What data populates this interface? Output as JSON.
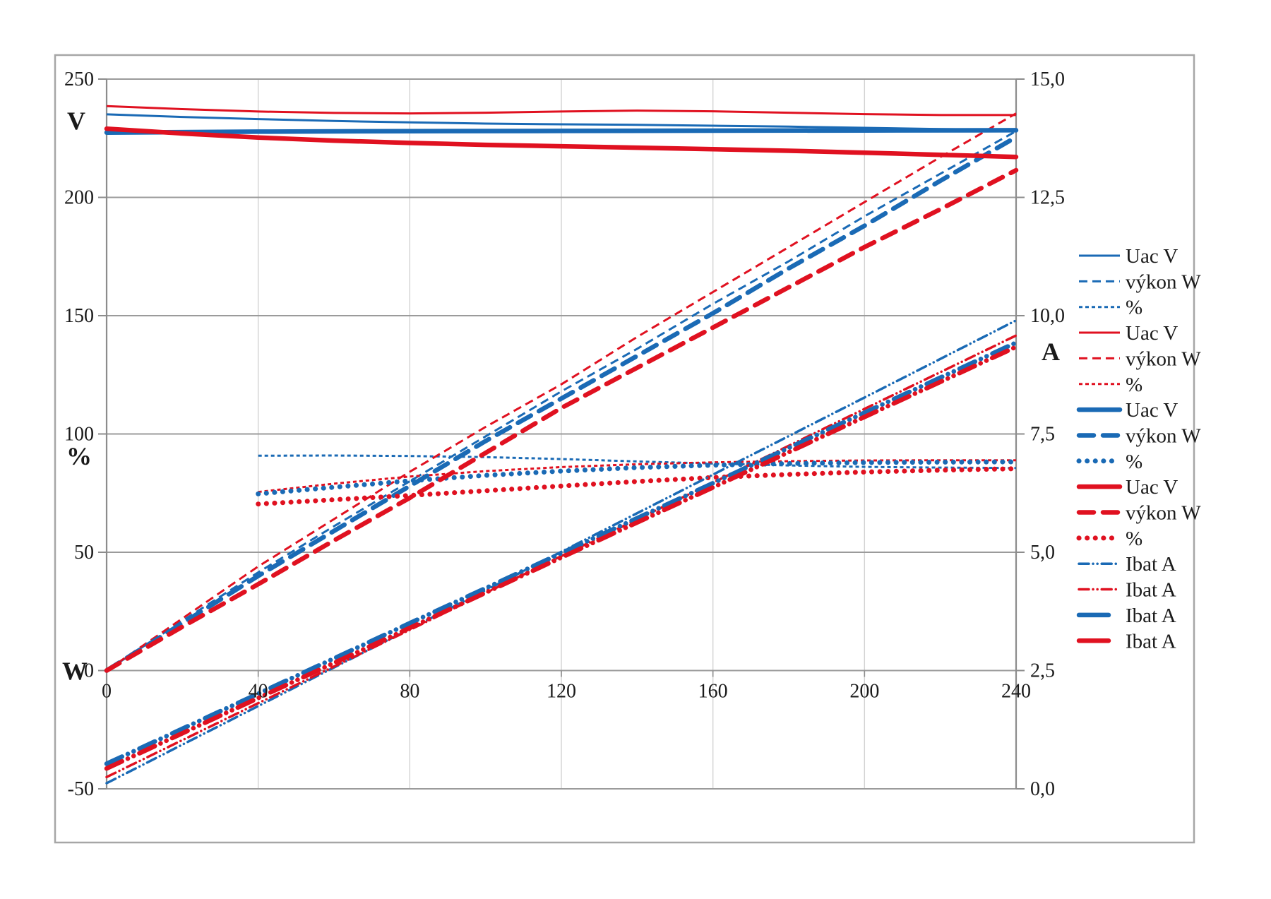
{
  "figure": {
    "background": "#ffffff",
    "border_color": "#a6a6a6",
    "axis_color": "#8c8c8c",
    "gridline_h_color": "#9b9b9b",
    "gridline_v_color": "#d2d2d2",
    "text_color": "#1a1a1a"
  },
  "axes": {
    "left": {
      "unit_top": "V",
      "unit_middle": "%",
      "unit_bottom": "W",
      "ticks": [
        "250",
        "200",
        "150",
        "100",
        "50",
        "0",
        "-50"
      ]
    },
    "right": {
      "unit": "A",
      "ticks": [
        "15,0",
        "12,5",
        "10,0",
        "7,5",
        "5,0",
        "2,5",
        "0,0"
      ]
    },
    "x": {
      "ticks": [
        "0",
        "40",
        "80",
        "120",
        "160",
        "200",
        "240"
      ]
    }
  },
  "chart_data": {
    "type": "line",
    "title": "",
    "x_axis": {
      "min": 0,
      "max": 240,
      "tick_labels": [
        "0",
        "40",
        "80",
        "120",
        "160",
        "200",
        "240"
      ],
      "gridlines": true
    },
    "y_axis_left": {
      "min": -50,
      "max": 250,
      "tick_step": 50,
      "tick_labels": [
        "250",
        "200",
        "150",
        "100",
        "50",
        "0",
        "-50"
      ],
      "unit_labels": {
        "top": "V",
        "middle": "%",
        "bottom": "W"
      }
    },
    "y_axis_right": {
      "min": 0.0,
      "max": 15.0,
      "tick_step": 2.5,
      "tick_labels": [
        "15,0",
        "12,5",
        "10,0",
        "7,5",
        "5,0",
        "2,5",
        "0,0"
      ],
      "unit_label": "A"
    },
    "legend_position": "right",
    "colors": {
      "blue": "#1a6ab5",
      "red": "#e01120"
    },
    "series": [
      {
        "name": "uac-v-blue-thin",
        "label": "Uac V",
        "color": "blue",
        "style": "thin-solid",
        "axis": "left",
        "unit": "V",
        "points": [
          [
            0,
            235.1
          ],
          [
            20,
            234.0
          ],
          [
            40,
            233.1
          ],
          [
            60,
            232.3
          ],
          [
            80,
            231.7
          ],
          [
            100,
            231.2
          ],
          [
            120,
            230.9
          ],
          [
            140,
            230.7
          ],
          [
            160,
            230.3
          ],
          [
            180,
            229.9
          ],
          [
            200,
            229.4
          ],
          [
            220,
            228.9
          ],
          [
            240,
            228.5
          ]
        ]
      },
      {
        "name": "vykon-w-blue-thin",
        "label": "výkon W",
        "color": "blue",
        "style": "thin-dash",
        "axis": "left",
        "unit": "W",
        "points": [
          [
            0,
            0
          ],
          [
            20,
            21
          ],
          [
            40,
            41.5
          ],
          [
            60,
            61
          ],
          [
            80,
            80
          ],
          [
            100,
            99
          ],
          [
            120,
            118
          ],
          [
            140,
            136
          ],
          [
            160,
            155
          ],
          [
            180,
            173
          ],
          [
            200,
            192
          ],
          [
            220,
            210
          ],
          [
            240,
            228
          ]
        ]
      },
      {
        "name": "pct-blue-thin",
        "label": "%",
        "color": "blue",
        "style": "thin-fine",
        "axis": "left",
        "unit": "%",
        "points": [
          [
            40,
            90.8
          ],
          [
            60,
            90.9
          ],
          [
            80,
            90.7
          ],
          [
            100,
            90.2
          ],
          [
            120,
            89.4
          ],
          [
            140,
            88.4
          ],
          [
            160,
            87.5
          ],
          [
            180,
            86.7
          ],
          [
            200,
            86.1
          ],
          [
            220,
            85.8
          ],
          [
            240,
            85.6
          ]
        ]
      },
      {
        "name": "uac-v-red-thin",
        "label": "Uac V",
        "color": "red",
        "style": "thin-solid",
        "axis": "left",
        "unit": "V",
        "points": [
          [
            0,
            238.6
          ],
          [
            20,
            237.3
          ],
          [
            40,
            236.3
          ],
          [
            60,
            235.7
          ],
          [
            80,
            235.5
          ],
          [
            100,
            235.8
          ],
          [
            120,
            236.3
          ],
          [
            140,
            236.7
          ],
          [
            160,
            236.4
          ],
          [
            180,
            235.8
          ],
          [
            200,
            235.2
          ],
          [
            220,
            234.8
          ],
          [
            240,
            234.8
          ]
        ]
      },
      {
        "name": "vykon-w-red-thin",
        "label": "výkon W",
        "color": "red",
        "style": "thin-dash",
        "axis": "left",
        "unit": "W",
        "points": [
          [
            0,
            0
          ],
          [
            20,
            22
          ],
          [
            40,
            44
          ],
          [
            60,
            64
          ],
          [
            80,
            84
          ],
          [
            100,
            103
          ],
          [
            120,
            121
          ],
          [
            140,
            141
          ],
          [
            160,
            160
          ],
          [
            180,
            179
          ],
          [
            200,
            198
          ],
          [
            220,
            217
          ],
          [
            240,
            235.5
          ]
        ]
      },
      {
        "name": "pct-red-thin",
        "label": "%",
        "color": "red",
        "style": "thin-fine",
        "axis": "left",
        "unit": "%",
        "points": [
          [
            40,
            75.5
          ],
          [
            60,
            79
          ],
          [
            80,
            82
          ],
          [
            100,
            84.3
          ],
          [
            120,
            86
          ],
          [
            140,
            87.2
          ],
          [
            160,
            88
          ],
          [
            180,
            88.5
          ],
          [
            200,
            88.8
          ],
          [
            220,
            88.9
          ],
          [
            240,
            88.9
          ]
        ]
      },
      {
        "name": "uac-v-blue-thick",
        "label": "Uac V",
        "color": "blue",
        "style": "thick-solid",
        "axis": "left",
        "unit": "V",
        "points": [
          [
            0,
            227.4
          ],
          [
            40,
            227.8
          ],
          [
            80,
            228.0
          ],
          [
            120,
            228.1
          ],
          [
            160,
            228.2
          ],
          [
            200,
            228.3
          ],
          [
            240,
            228.4
          ]
        ]
      },
      {
        "name": "vykon-w-blue-thick",
        "label": "výkon W",
        "color": "blue",
        "style": "thick-dash",
        "axis": "left",
        "unit": "W",
        "points": [
          [
            0,
            0
          ],
          [
            20,
            20
          ],
          [
            40,
            40
          ],
          [
            60,
            59
          ],
          [
            80,
            78
          ],
          [
            100,
            97
          ],
          [
            120,
            115
          ],
          [
            140,
            133
          ],
          [
            160,
            151
          ],
          [
            180,
            170
          ],
          [
            200,
            188
          ],
          [
            220,
            207
          ],
          [
            240,
            225.5
          ]
        ]
      },
      {
        "name": "pct-blue-thick",
        "label": "%",
        "color": "blue",
        "style": "thick-dot",
        "axis": "left",
        "unit": "%",
        "points": [
          [
            40,
            74.7
          ],
          [
            60,
            77.5
          ],
          [
            80,
            80.2
          ],
          [
            100,
            82.5
          ],
          [
            120,
            84.3
          ],
          [
            140,
            85.8
          ],
          [
            160,
            86.8
          ],
          [
            180,
            87.5
          ],
          [
            200,
            87.9
          ],
          [
            220,
            88.1
          ],
          [
            240,
            88.2
          ]
        ]
      },
      {
        "name": "uac-v-red-thick",
        "label": "Uac V",
        "color": "red",
        "style": "thick-solid",
        "axis": "left",
        "unit": "V",
        "points": [
          [
            0,
            229
          ],
          [
            20,
            227
          ],
          [
            40,
            225.3
          ],
          [
            60,
            224
          ],
          [
            80,
            223
          ],
          [
            100,
            222.2
          ],
          [
            120,
            221.6
          ],
          [
            140,
            221
          ],
          [
            160,
            220.4
          ],
          [
            180,
            219.7
          ],
          [
            200,
            218.9
          ],
          [
            220,
            218
          ],
          [
            240,
            217.1
          ]
        ]
      },
      {
        "name": "vykon-w-red-thick",
        "label": "výkon W",
        "color": "red",
        "style": "thick-dash",
        "axis": "left",
        "unit": "W",
        "points": [
          [
            0,
            0
          ],
          [
            20,
            18.5
          ],
          [
            40,
            36.5
          ],
          [
            60,
            55
          ],
          [
            80,
            73
          ],
          [
            100,
            92
          ],
          [
            120,
            111
          ],
          [
            140,
            128
          ],
          [
            160,
            145
          ],
          [
            180,
            162
          ],
          [
            200,
            179
          ],
          [
            220,
            195
          ],
          [
            240,
            211.5
          ]
        ]
      },
      {
        "name": "pct-red-thick",
        "label": "%",
        "color": "red",
        "style": "thick-dot",
        "axis": "left",
        "unit": "%",
        "points": [
          [
            40,
            70.4
          ],
          [
            60,
            72.2
          ],
          [
            80,
            74
          ],
          [
            100,
            76
          ],
          [
            120,
            78
          ],
          [
            140,
            79.9
          ],
          [
            160,
            81.6
          ],
          [
            180,
            82.9
          ],
          [
            200,
            83.9
          ],
          [
            220,
            84.7
          ],
          [
            240,
            85.3
          ]
        ]
      },
      {
        "name": "ibat-a-blue-thin",
        "label": "Ibat A",
        "color": "blue",
        "style": "thin-dashdotdot",
        "axis": "right",
        "unit": "A",
        "points": [
          [
            0,
            0.12
          ],
          [
            40,
            1.75
          ],
          [
            80,
            3.38
          ],
          [
            120,
            5.01
          ],
          [
            160,
            6.64
          ],
          [
            200,
            8.27
          ],
          [
            240,
            9.9
          ]
        ]
      },
      {
        "name": "ibat-a-red-thin",
        "label": "Ibat A",
        "color": "red",
        "style": "thin-dashdotdot",
        "axis": "right",
        "unit": "A",
        "points": [
          [
            0,
            0.25
          ],
          [
            40,
            1.81
          ],
          [
            80,
            3.36
          ],
          [
            120,
            4.92
          ],
          [
            160,
            6.47
          ],
          [
            200,
            8.03
          ],
          [
            240,
            9.58
          ]
        ]
      },
      {
        "name": "ibat-a-blue-thick",
        "label": "Ibat A",
        "color": "blue",
        "style": "thick-dashdotdot",
        "axis": "right",
        "unit": "A",
        "points": [
          [
            0,
            0.53
          ],
          [
            40,
            2.01
          ],
          [
            80,
            3.5
          ],
          [
            120,
            4.98
          ],
          [
            160,
            6.46
          ],
          [
            200,
            7.95
          ],
          [
            240,
            9.43
          ]
        ]
      },
      {
        "name": "ibat-a-red-thick",
        "label": "Ibat A",
        "color": "red",
        "style": "thick-dashdotdot",
        "axis": "right",
        "unit": "A",
        "points": [
          [
            0,
            0.43
          ],
          [
            40,
            1.92
          ],
          [
            80,
            3.4
          ],
          [
            120,
            4.89
          ],
          [
            160,
            6.37
          ],
          [
            200,
            7.86
          ],
          [
            240,
            9.34
          ]
        ]
      }
    ]
  }
}
